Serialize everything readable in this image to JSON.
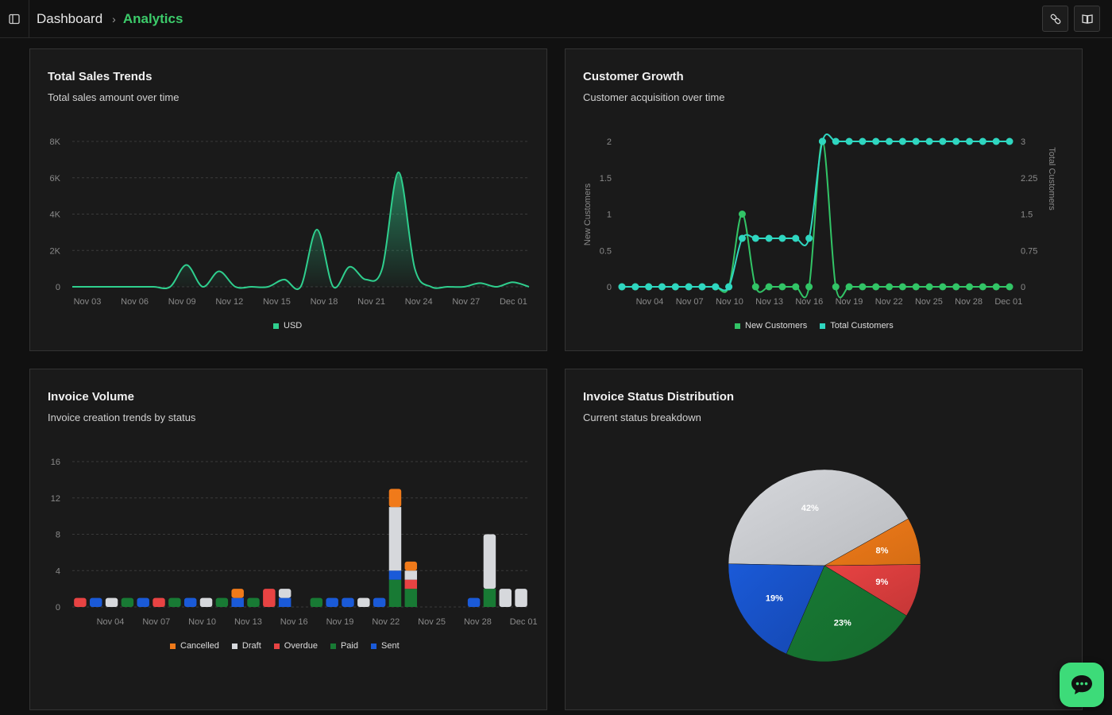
{
  "breadcrumb": {
    "root": "Dashboard",
    "separator": "›",
    "current": "Analytics"
  },
  "colors": {
    "accent": "#3ccb6a",
    "teal": "#2fd6c0",
    "green": "#32c466",
    "cancelled": "#f07a1a",
    "draft": "#d6d8dc",
    "overdue": "#e84343",
    "paid": "#187a34",
    "sent": "#1a5ad8"
  },
  "icons": {
    "sidebar": "sidebar-toggle-icon",
    "link": "link-icon",
    "docs": "book-icon",
    "chat": "chat-bubble-icon"
  },
  "cards": {
    "sales": {
      "title": "Total Sales Trends",
      "subtitle": "Total sales amount over time"
    },
    "growth": {
      "title": "Customer Growth",
      "subtitle": "Customer acquisition over time"
    },
    "invoice": {
      "title": "Invoice Volume",
      "subtitle": "Invoice creation trends by status"
    },
    "status": {
      "title": "Invoice Status Distribution",
      "subtitle": "Current status breakdown"
    }
  },
  "chart_data": [
    {
      "id": "sales",
      "type": "area",
      "title": "Total Sales Trends",
      "ylim": [
        0,
        8000
      ],
      "y_ticks": [
        0,
        2000,
        4000,
        6000,
        8000
      ],
      "y_tick_labels": [
        "0",
        "2K",
        "4K",
        "6K",
        "8K"
      ],
      "x_tick_labels": [
        "Nov 03",
        "Nov 06",
        "Nov 09",
        "Nov 12",
        "Nov 15",
        "Nov 18",
        "Nov 21",
        "Nov 24",
        "Nov 27",
        "Dec 01"
      ],
      "x": [
        "Nov 03",
        "Nov 04",
        "Nov 05",
        "Nov 06",
        "Nov 07",
        "Nov 08",
        "Nov 09",
        "Nov 10",
        "Nov 11",
        "Nov 12",
        "Nov 13",
        "Nov 14",
        "Nov 15",
        "Nov 16",
        "Nov 17",
        "Nov 18",
        "Nov 19",
        "Nov 20",
        "Nov 21",
        "Nov 22",
        "Nov 23",
        "Nov 24",
        "Nov 25",
        "Nov 26",
        "Nov 27",
        "Nov 28",
        "Nov 29",
        "Nov 30",
        "Dec 01"
      ],
      "series": [
        {
          "name": "USD",
          "values": [
            0,
            0,
            0,
            0,
            0,
            0,
            0,
            1200,
            0,
            850,
            0,
            0,
            0,
            400,
            0,
            3150,
            0,
            1100,
            400,
            1000,
            6300,
            1000,
            0,
            0,
            0,
            200,
            0,
            250,
            0
          ]
        }
      ],
      "legend": [
        "USD"
      ],
      "grid": true
    },
    {
      "id": "growth",
      "type": "line",
      "title": "Customer Growth",
      "ylabel_left": "New Customers",
      "ylabel_right": "Total Customers",
      "ylim_left": [
        0,
        2
      ],
      "ylim_right": [
        0,
        3
      ],
      "y_ticks_left": [
        "0",
        "0.5",
        "1",
        "1.5",
        "2"
      ],
      "y_ticks_right": [
        "0",
        "0.75",
        "1.5",
        "2.25",
        "3"
      ],
      "x_tick_labels": [
        "Nov 04",
        "Nov 07",
        "Nov 10",
        "Nov 13",
        "Nov 16",
        "Nov 19",
        "Nov 22",
        "Nov 25",
        "Nov 28",
        "Dec 01"
      ],
      "series": [
        {
          "name": "New Customers",
          "axis": "left",
          "values": [
            0,
            0,
            0,
            0,
            0,
            0,
            0,
            0,
            0,
            1,
            0,
            0,
            0,
            0,
            0,
            2,
            0,
            0,
            0,
            0,
            0,
            0,
            0,
            0,
            0,
            0,
            0,
            0,
            0,
            0
          ]
        },
        {
          "name": "Total Customers",
          "axis": "right",
          "values": [
            0,
            0,
            0,
            0,
            0,
            0,
            0,
            0,
            0,
            1,
            1,
            1,
            1,
            1,
            1,
            3,
            3,
            3,
            3,
            3,
            3,
            3,
            3,
            3,
            3,
            3,
            3,
            3,
            3,
            3
          ]
        }
      ],
      "legend": [
        "New Customers",
        "Total Customers"
      ],
      "grid": false
    },
    {
      "id": "invoice",
      "type": "bar",
      "stacked": true,
      "title": "Invoice Volume",
      "ylim": [
        0,
        16
      ],
      "y_ticks": [
        "0",
        "4",
        "8",
        "12",
        "16"
      ],
      "x_tick_labels": [
        "Nov 04",
        "Nov 07",
        "Nov 10",
        "Nov 13",
        "Nov 16",
        "Nov 19",
        "Nov 22",
        "Nov 25",
        "Nov 28",
        "Dec 01"
      ],
      "categories": [
        "Nov 03",
        "Nov 04",
        "Nov 05",
        "Nov 06",
        "Nov 07",
        "Nov 08",
        "Nov 09",
        "Nov 10",
        "Nov 11",
        "Nov 12",
        "Nov 13",
        "Nov 14",
        "Nov 15",
        "Nov 16",
        "Nov 17",
        "Nov 18",
        "Nov 19",
        "Nov 20",
        "Nov 21",
        "Nov 22",
        "Nov 23",
        "Nov 24",
        "Nov 25",
        "Nov 26",
        "Nov 27",
        "Nov 28",
        "Nov 29",
        "Nov 30",
        "Dec 01"
      ],
      "series": [
        {
          "name": "Paid",
          "values": [
            0,
            0,
            0,
            1,
            0,
            0,
            1,
            0,
            0,
            1,
            0,
            1,
            0,
            0,
            0,
            1,
            0,
            0,
            0,
            0,
            3,
            2,
            0,
            0,
            0,
            0,
            2,
            0,
            0
          ]
        },
        {
          "name": "Sent",
          "values": [
            0,
            1,
            0,
            0,
            1,
            0,
            0,
            1,
            0,
            0,
            1,
            0,
            0,
            1,
            0,
            0,
            1,
            1,
            0,
            1,
            1,
            0,
            0,
            0,
            0,
            1,
            0,
            0,
            0
          ]
        },
        {
          "name": "Overdue",
          "values": [
            1,
            0,
            0,
            0,
            0,
            1,
            0,
            0,
            0,
            0,
            0,
            0,
            2,
            0,
            0,
            0,
            0,
            0,
            0,
            0,
            0,
            1,
            0,
            0,
            0,
            0,
            0,
            0,
            0
          ]
        },
        {
          "name": "Draft",
          "values": [
            0,
            0,
            1,
            0,
            0,
            0,
            0,
            0,
            1,
            0,
            0,
            0,
            0,
            1,
            0,
            0,
            0,
            0,
            1,
            0,
            7,
            1,
            0,
            0,
            0,
            0,
            6,
            2,
            2
          ]
        },
        {
          "name": "Cancelled",
          "values": [
            0,
            0,
            0,
            0,
            0,
            0,
            0,
            0,
            0,
            0,
            1,
            0,
            0,
            0,
            0,
            0,
            0,
            0,
            0,
            0,
            2,
            1,
            0,
            0,
            0,
            0,
            0,
            0,
            0
          ]
        }
      ],
      "legend": [
        "Cancelled",
        "Draft",
        "Overdue",
        "Paid",
        "Sent"
      ],
      "grid": true
    },
    {
      "id": "status",
      "type": "pie",
      "title": "Invoice Status Distribution",
      "slices": [
        {
          "name": "Draft",
          "value": 42,
          "label": "42%"
        },
        {
          "name": "Cancelled",
          "value": 8,
          "label": "8%"
        },
        {
          "name": "Overdue",
          "value": 9,
          "label": "9%"
        },
        {
          "name": "Paid",
          "value": 23,
          "label": "23%"
        },
        {
          "name": "Sent",
          "value": 19,
          "label": "19%"
        }
      ]
    }
  ]
}
